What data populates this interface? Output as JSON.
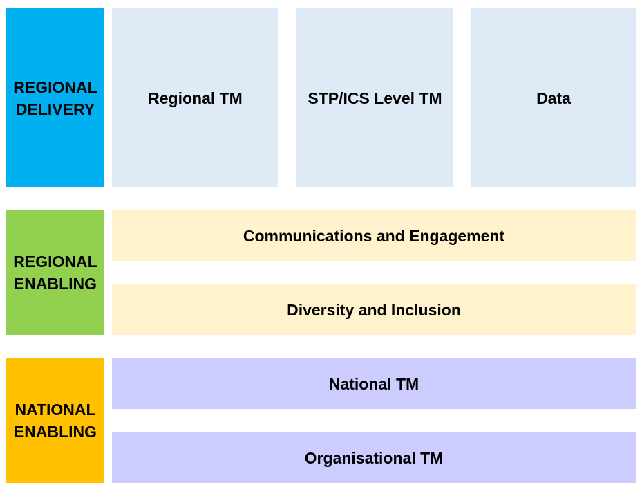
{
  "sections": {
    "regional_delivery": {
      "label": "REGIONAL\nDELIVERY",
      "color": "#00B0F0",
      "box_color": "#DEEBF7",
      "boxes": [
        "Regional TM",
        "STP/ICS Level TM",
        "Data"
      ]
    },
    "regional_enabling": {
      "label": "REGIONAL\nENABLING",
      "color": "#92D050",
      "box_color": "#FFF2CC",
      "boxes": [
        "Communications and Engagement",
        "Diversity and Inclusion"
      ]
    },
    "national_enabling": {
      "label": "NATIONAL\nENABLING",
      "color": "#FFC000",
      "box_color": "#CCCCFF",
      "boxes": [
        "National TM",
        "Organisational TM"
      ]
    }
  }
}
